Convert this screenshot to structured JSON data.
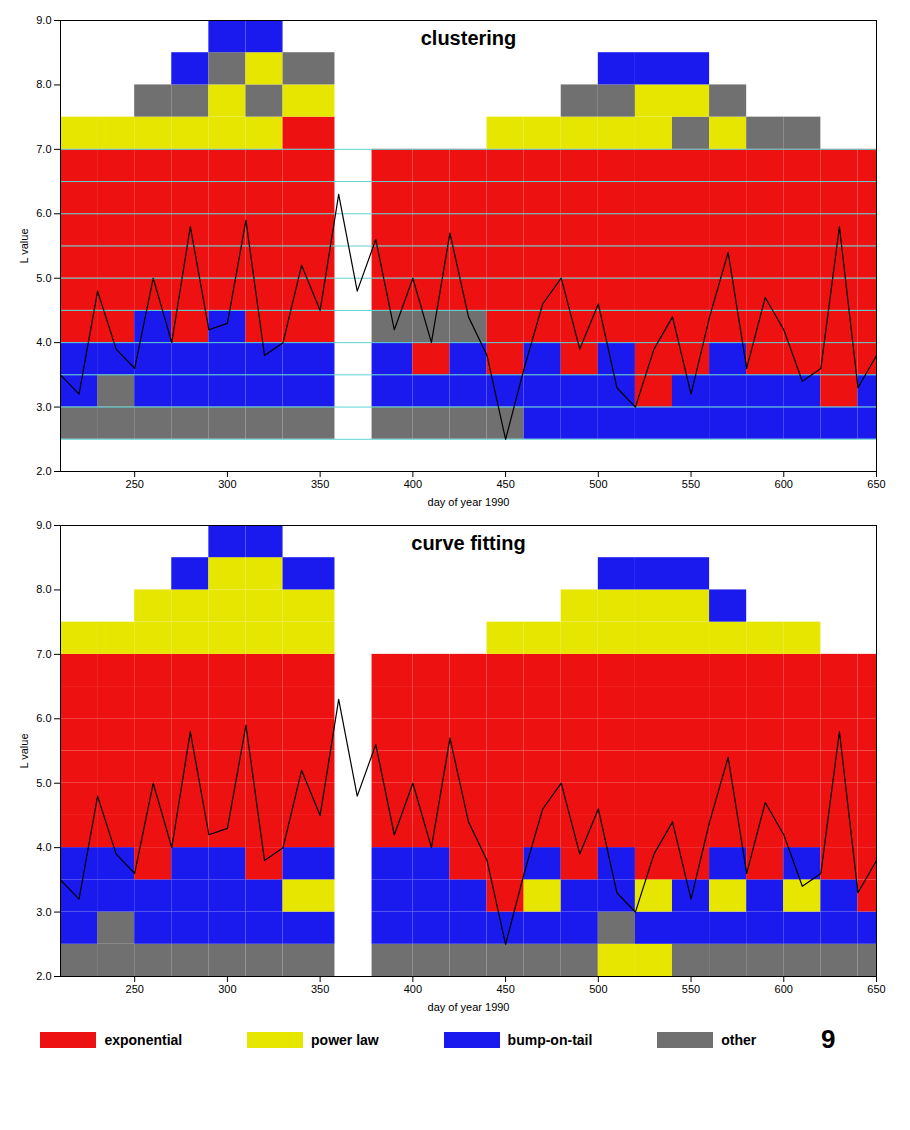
{
  "chart_data": [
    {
      "type": "heatmap",
      "title": "clustering",
      "xlabel": "day of year 1990",
      "ylabel": "L value",
      "xlim": [
        210,
        650
      ],
      "xticks": [
        250,
        300,
        350,
        400,
        450,
        500,
        550,
        600,
        650
      ],
      "ylim": [
        2,
        9
      ],
      "yticks": [
        2,
        3,
        4,
        5,
        6,
        7,
        8,
        9
      ],
      "x_edges": [
        210,
        230,
        250,
        270,
        290,
        310,
        330,
        358,
        378,
        400,
        420,
        440,
        460,
        480,
        500,
        520,
        540,
        560,
        580,
        600,
        620,
        640,
        650
      ],
      "y_edges": [
        2,
        2.5,
        3,
        3.5,
        4,
        4.5,
        5,
        5.5,
        6,
        6.5,
        7,
        7.5,
        8,
        8.5,
        9
      ],
      "cells": [
        [
          null,
          3,
          2,
          2,
          0,
          0,
          0,
          0,
          0,
          0,
          1,
          null,
          null,
          null
        ],
        [
          null,
          3,
          3,
          2,
          0,
          0,
          0,
          0,
          0,
          0,
          1,
          null,
          null,
          null
        ],
        [
          null,
          3,
          2,
          2,
          2,
          0,
          0,
          0,
          0,
          0,
          1,
          3,
          null,
          null
        ],
        [
          null,
          3,
          2,
          2,
          0,
          0,
          0,
          0,
          0,
          0,
          1,
          3,
          2,
          null
        ],
        [
          null,
          3,
          2,
          2,
          2,
          0,
          0,
          0,
          0,
          0,
          1,
          1,
          3,
          2
        ],
        [
          null,
          3,
          2,
          2,
          0,
          0,
          0,
          0,
          0,
          0,
          1,
          3,
          1,
          2
        ],
        [
          null,
          3,
          2,
          2,
          0,
          0,
          0,
          0,
          0,
          0,
          0,
          1,
          3,
          null
        ],
        [
          null,
          null,
          null,
          null,
          null,
          null,
          null,
          null,
          null,
          null,
          null,
          null,
          null,
          null
        ],
        [
          null,
          3,
          2,
          2,
          3,
          0,
          0,
          0,
          0,
          0,
          null,
          null,
          null,
          null
        ],
        [
          null,
          3,
          2,
          0,
          3,
          0,
          0,
          0,
          0,
          0,
          null,
          null,
          null,
          null
        ],
        [
          null,
          3,
          2,
          2,
          3,
          0,
          0,
          0,
          0,
          0,
          null,
          null,
          null,
          null
        ],
        [
          null,
          3,
          2,
          0,
          0,
          0,
          0,
          0,
          0,
          0,
          1,
          null,
          null,
          null
        ],
        [
          null,
          2,
          2,
          2,
          0,
          0,
          0,
          0,
          0,
          0,
          1,
          null,
          null,
          null
        ],
        [
          null,
          2,
          2,
          0,
          0,
          0,
          0,
          0,
          0,
          0,
          1,
          3,
          null,
          null
        ],
        [
          null,
          2,
          2,
          2,
          0,
          0,
          0,
          0,
          0,
          0,
          1,
          3,
          2,
          null
        ],
        [
          null,
          2,
          0,
          0,
          0,
          0,
          0,
          0,
          0,
          0,
          1,
          1,
          2,
          null
        ],
        [
          null,
          2,
          2,
          0,
          0,
          0,
          0,
          0,
          0,
          0,
          3,
          1,
          2,
          null
        ],
        [
          null,
          2,
          2,
          2,
          0,
          0,
          0,
          0,
          0,
          0,
          1,
          3,
          null,
          null
        ],
        [
          null,
          2,
          2,
          0,
          0,
          0,
          0,
          0,
          0,
          0,
          3,
          null,
          null,
          null
        ],
        [
          null,
          2,
          2,
          0,
          0,
          0,
          0,
          0,
          0,
          0,
          3,
          null,
          null,
          null
        ],
        [
          null,
          2,
          0,
          0,
          0,
          0,
          0,
          0,
          0,
          0,
          null,
          null,
          null,
          null
        ],
        [
          null,
          2,
          2,
          0,
          0,
          0,
          0,
          0,
          0,
          0,
          null,
          null,
          null,
          null
        ]
      ],
      "reference_lines": {
        "values": [
          2.5,
          3,
          3.5,
          4,
          4.5,
          5,
          5.5,
          6,
          6.5,
          7
        ],
        "color": "#5fd3d3"
      },
      "line": {
        "color": "#000000",
        "x": [
          210,
          220,
          230,
          240,
          250,
          260,
          270,
          280,
          290,
          300,
          310,
          320,
          330,
          340,
          350,
          360,
          370,
          380,
          390,
          400,
          410,
          420,
          430,
          440,
          450,
          460,
          470,
          480,
          490,
          500,
          510,
          520,
          530,
          540,
          550,
          560,
          570,
          580,
          590,
          600,
          610,
          620,
          630,
          640,
          650
        ],
        "values": [
          3.5,
          3.2,
          4.8,
          3.9,
          3.6,
          5.0,
          4.0,
          5.8,
          4.2,
          4.3,
          5.9,
          3.8,
          4.0,
          5.2,
          4.5,
          6.3,
          4.8,
          5.6,
          4.2,
          5.0,
          4.0,
          5.7,
          4.4,
          3.8,
          2.5,
          3.6,
          4.6,
          5.0,
          3.9,
          4.6,
          3.3,
          3.0,
          3.9,
          4.4,
          3.2,
          4.4,
          5.4,
          3.6,
          4.7,
          4.2,
          3.4,
          3.6,
          5.8,
          3.3,
          3.8
        ]
      }
    },
    {
      "type": "heatmap",
      "title": "curve fitting",
      "xlabel": "day of year 1990",
      "ylabel": "L value",
      "xlim": [
        210,
        650
      ],
      "xticks": [
        250,
        300,
        350,
        400,
        450,
        500,
        550,
        600,
        650
      ],
      "ylim": [
        2,
        9
      ],
      "yticks": [
        2,
        3,
        4,
        5,
        6,
        7,
        8,
        9
      ],
      "x_edges": [
        210,
        230,
        250,
        270,
        290,
        310,
        330,
        358,
        378,
        400,
        420,
        440,
        460,
        480,
        500,
        520,
        540,
        560,
        580,
        600,
        620,
        640,
        650
      ],
      "y_edges": [
        2,
        2.5,
        3,
        3.5,
        4,
        4.5,
        5,
        5.5,
        6,
        6.5,
        7,
        7.5,
        8,
        8.5,
        9
      ],
      "cells": [
        [
          3,
          2,
          2,
          2,
          0,
          0,
          0,
          0,
          0,
          0,
          1,
          null,
          null,
          null
        ],
        [
          3,
          3,
          2,
          2,
          0,
          0,
          0,
          0,
          0,
          0,
          1,
          null,
          null,
          null
        ],
        [
          3,
          2,
          2,
          0,
          0,
          0,
          0,
          0,
          0,
          0,
          1,
          1,
          null,
          null
        ],
        [
          3,
          2,
          2,
          2,
          0,
          0,
          0,
          0,
          0,
          0,
          1,
          1,
          2,
          null
        ],
        [
          3,
          2,
          2,
          2,
          0,
          0,
          0,
          0,
          0,
          0,
          1,
          1,
          1,
          2
        ],
        [
          3,
          2,
          2,
          0,
          0,
          0,
          0,
          0,
          0,
          0,
          1,
          1,
          1,
          2
        ],
        [
          3,
          2,
          1,
          2,
          0,
          0,
          0,
          0,
          0,
          0,
          1,
          1,
          2,
          null
        ],
        [
          null,
          null,
          null,
          null,
          null,
          null,
          null,
          null,
          null,
          null,
          null,
          null,
          null,
          null
        ],
        [
          3,
          2,
          2,
          2,
          0,
          0,
          0,
          0,
          0,
          0,
          null,
          null,
          null,
          null
        ],
        [
          3,
          2,
          2,
          2,
          0,
          0,
          0,
          0,
          0,
          0,
          null,
          null,
          null,
          null
        ],
        [
          3,
          2,
          2,
          0,
          0,
          0,
          0,
          0,
          0,
          0,
          null,
          null,
          null,
          null
        ],
        [
          3,
          2,
          0,
          0,
          0,
          0,
          0,
          0,
          0,
          0,
          1,
          null,
          null,
          null
        ],
        [
          3,
          2,
          1,
          2,
          0,
          0,
          0,
          0,
          0,
          0,
          1,
          null,
          null,
          null
        ],
        [
          3,
          2,
          2,
          0,
          0,
          0,
          0,
          0,
          0,
          0,
          1,
          1,
          null,
          null
        ],
        [
          1,
          3,
          2,
          2,
          0,
          0,
          0,
          0,
          0,
          0,
          1,
          1,
          2,
          null
        ],
        [
          1,
          2,
          1,
          0,
          0,
          0,
          0,
          0,
          0,
          0,
          1,
          1,
          2,
          null
        ],
        [
          3,
          2,
          2,
          0,
          0,
          0,
          0,
          0,
          0,
          0,
          1,
          1,
          2,
          null
        ],
        [
          3,
          2,
          1,
          2,
          0,
          0,
          0,
          0,
          0,
          0,
          1,
          2,
          null,
          null
        ],
        [
          3,
          2,
          2,
          0,
          0,
          0,
          0,
          0,
          0,
          0,
          1,
          null,
          null,
          null
        ],
        [
          3,
          2,
          1,
          2,
          0,
          0,
          0,
          0,
          0,
          0,
          1,
          null,
          null,
          null
        ],
        [
          3,
          2,
          2,
          0,
          0,
          0,
          0,
          0,
          0,
          0,
          null,
          null,
          null,
          null
        ],
        [
          3,
          2,
          0,
          0,
          0,
          0,
          0,
          0,
          0,
          0,
          null,
          null,
          null,
          null
        ]
      ],
      "line": {
        "color": "#000000",
        "x": [
          210,
          220,
          230,
          240,
          250,
          260,
          270,
          280,
          290,
          300,
          310,
          320,
          330,
          340,
          350,
          360,
          370,
          380,
          390,
          400,
          410,
          420,
          430,
          440,
          450,
          460,
          470,
          480,
          490,
          500,
          510,
          520,
          530,
          540,
          550,
          560,
          570,
          580,
          590,
          600,
          610,
          620,
          630,
          640,
          650
        ],
        "values": [
          3.5,
          3.2,
          4.8,
          3.9,
          3.6,
          5.0,
          4.0,
          5.8,
          4.2,
          4.3,
          5.9,
          3.8,
          4.0,
          5.2,
          4.5,
          6.3,
          4.8,
          5.6,
          4.2,
          5.0,
          4.0,
          5.7,
          4.4,
          3.8,
          2.5,
          3.6,
          4.6,
          5.0,
          3.9,
          4.6,
          3.3,
          3.0,
          3.9,
          4.4,
          3.2,
          4.4,
          5.4,
          3.6,
          4.7,
          4.2,
          3.4,
          3.6,
          5.8,
          3.3,
          3.8
        ]
      }
    }
  ],
  "classes": [
    {
      "name": "exponential",
      "color": "#ee1111"
    },
    {
      "name": "power law",
      "color": "#e6e600"
    },
    {
      "name": "bump-on-tail",
      "color": "#1a1aee"
    },
    {
      "name": "other",
      "color": "#707070"
    }
  ],
  "legend": "bottom",
  "annotation": "9"
}
